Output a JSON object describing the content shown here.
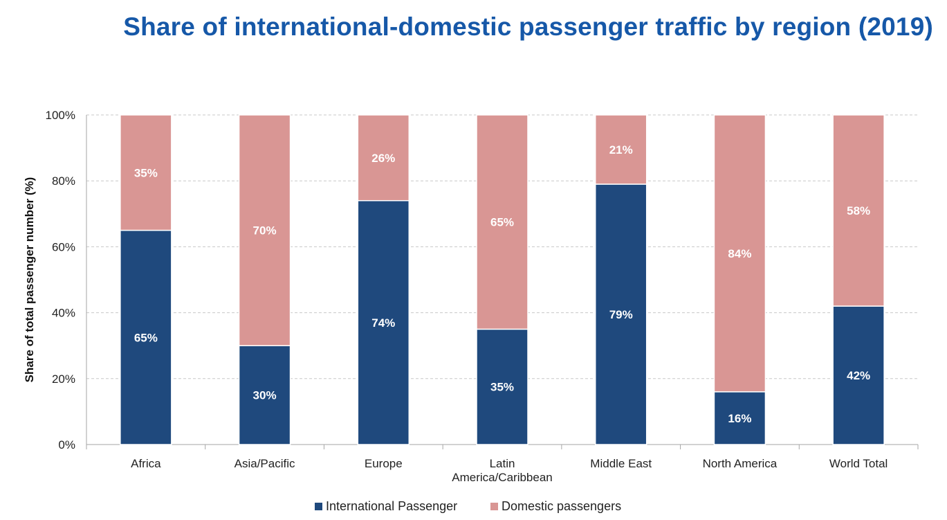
{
  "title": "Share of international-domestic passenger traffic by region (2019)",
  "chart_data": {
    "type": "bar",
    "stacked": true,
    "title": "Share of international-domestic passenger traffic by region (2019)",
    "xlabel": "",
    "ylabel": "Share of total passenger number (%)",
    "ylim": [
      0,
      100
    ],
    "yticks": [
      "0%",
      "20%",
      "40%",
      "60%",
      "80%",
      "100%"
    ],
    "ytick_values": [
      0,
      20,
      40,
      60,
      80,
      100
    ],
    "grid": true,
    "legend_position": "bottom",
    "categories": [
      [
        "Africa"
      ],
      [
        "Asia/Pacific"
      ],
      [
        "Europe"
      ],
      [
        "Latin",
        "America/Caribbean"
      ],
      [
        "Middle East"
      ],
      [
        "North America"
      ],
      [
        "World Total"
      ]
    ],
    "series": [
      {
        "name": "International Passenger",
        "color": "#1f497d",
        "values": [
          65,
          30,
          74,
          35,
          79,
          16,
          42
        ],
        "labels": [
          "65%",
          "30%",
          "74%",
          "35%",
          "79%",
          "16%",
          "42%"
        ]
      },
      {
        "name": "Domestic passengers",
        "color": "#d99694",
        "values": [
          35,
          70,
          26,
          65,
          21,
          84,
          58
        ],
        "labels": [
          "35%",
          "70%",
          "26%",
          "65%",
          "21%",
          "84%",
          "58%"
        ]
      }
    ]
  }
}
